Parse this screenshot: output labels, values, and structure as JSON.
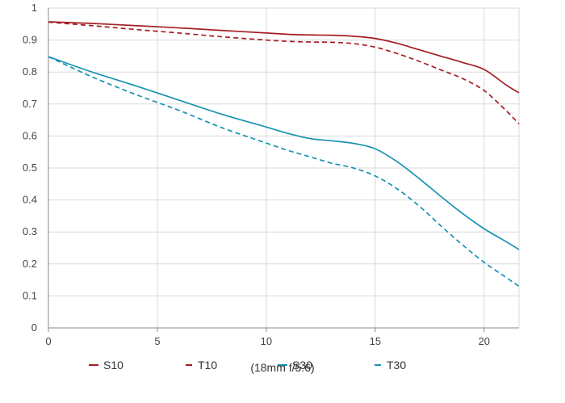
{
  "chart_data": {
    "type": "line",
    "xlim": [
      0,
      21.6
    ],
    "ylim": [
      0,
      1
    ],
    "x_ticks": [
      "0",
      "5",
      "10",
      "15",
      "20"
    ],
    "y_ticks": [
      "0",
      "0.1",
      "0.2",
      "0.3",
      "0.4",
      "0.5",
      "0.6",
      "0.7",
      "0.8",
      "0.9",
      "1"
    ],
    "grid": true,
    "legend_position": "bottom",
    "caption": "(18mm f/5.6)",
    "series": [
      {
        "name": "S10",
        "color": "#a61d24",
        "dash": "solid",
        "x": [
          0,
          2,
          4,
          6,
          8,
          10,
          11,
          12,
          13,
          14,
          15,
          16,
          17,
          18,
          19,
          20,
          21,
          21.6
        ],
        "y": [
          0.957,
          0.952,
          0.945,
          0.938,
          0.93,
          0.922,
          0.918,
          0.916,
          0.915,
          0.912,
          0.905,
          0.89,
          0.87,
          0.85,
          0.83,
          0.808,
          0.76,
          0.735
        ]
      },
      {
        "name": "T10",
        "color": "#a61d24",
        "dash": "dashed",
        "x": [
          0,
          2,
          4,
          6,
          8,
          10,
          11,
          12,
          13,
          14,
          15,
          16,
          17,
          18,
          19,
          20,
          21,
          21.6
        ],
        "y": [
          0.956,
          0.945,
          0.933,
          0.922,
          0.91,
          0.9,
          0.896,
          0.894,
          0.893,
          0.889,
          0.878,
          0.858,
          0.834,
          0.807,
          0.78,
          0.742,
          0.68,
          0.638
        ]
      },
      {
        "name": "S30",
        "color": "#1792b3",
        "dash": "solid",
        "x": [
          0,
          2,
          4,
          6,
          8,
          10,
          11,
          12,
          13,
          14,
          15,
          16,
          17,
          18,
          19,
          20,
          21,
          21.6
        ],
        "y": [
          0.848,
          0.8,
          0.757,
          0.712,
          0.667,
          0.628,
          0.608,
          0.592,
          0.585,
          0.577,
          0.56,
          0.52,
          0.468,
          0.412,
          0.358,
          0.31,
          0.27,
          0.245
        ]
      },
      {
        "name": "T30",
        "color": "#1792b3",
        "dash": "dashed",
        "x": [
          0,
          2,
          4,
          6,
          8,
          10,
          11,
          12,
          13,
          14,
          15,
          16,
          17,
          18,
          19,
          20,
          21,
          21.6
        ],
        "y": [
          0.848,
          0.785,
          0.73,
          0.68,
          0.625,
          0.578,
          0.555,
          0.535,
          0.515,
          0.5,
          0.475,
          0.435,
          0.382,
          0.32,
          0.26,
          0.205,
          0.158,
          0.13
        ]
      }
    ]
  }
}
